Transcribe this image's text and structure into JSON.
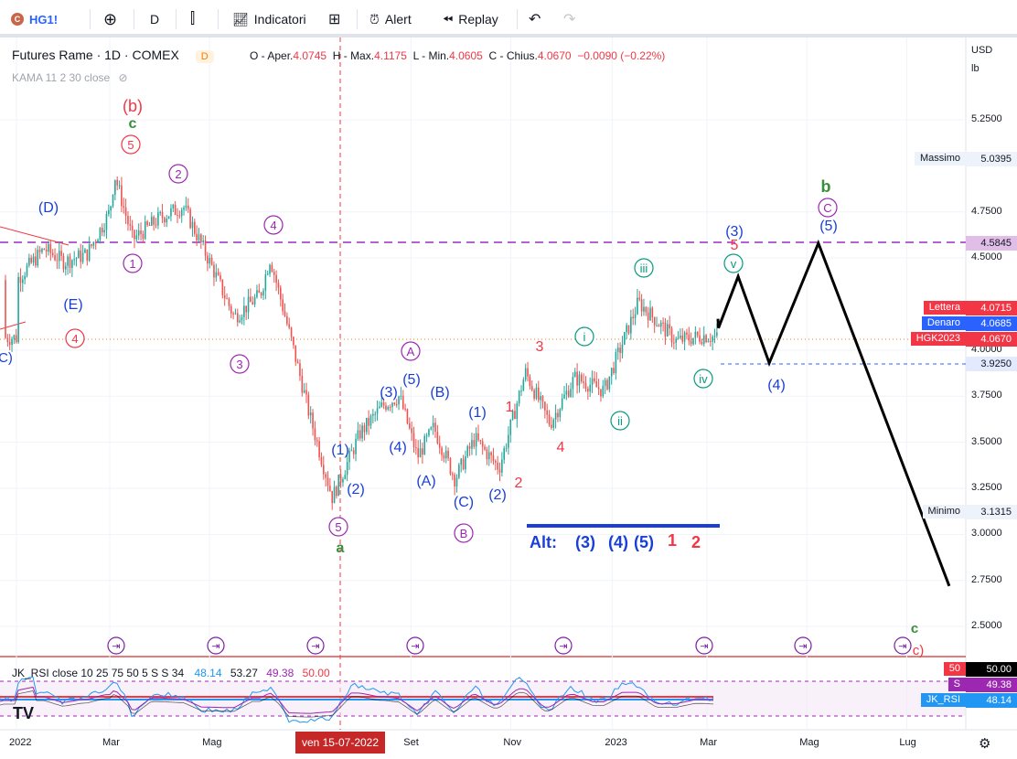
{
  "toolbar": {
    "symbol": "HG1!",
    "interval": "D",
    "indicators_label": "Indicatori",
    "alert_label": "Alert",
    "replay_label": "Replay"
  },
  "legend": {
    "title": "Futures Rame · 1D · COMEX",
    "badge": "D",
    "open_key": "O - Aper.",
    "open": "4.0745",
    "high_key": "H - Max.",
    "high": "4.1175",
    "low_key": "L - Min.",
    "low": "4.0605",
    "close_key": "C - Chius.",
    "close": "4.0670",
    "change": "−0.0090 (−0.22%)",
    "kama": "KAMA 11 2 30 close"
  },
  "rsi_legend": {
    "name": "JK_RSI close 10 25 75 50 5 S S 34",
    "v1": "48.14",
    "v2": "53.27",
    "v3": "49.38",
    "v4": "50.00"
  },
  "axis": {
    "currency": "USD",
    "unit": "lb",
    "y_ticks": [
      "5.2500",
      "4.7500",
      "4.5000",
      "4.0000",
      "3.7500",
      "3.5000",
      "3.2500",
      "3.0000",
      "2.7500",
      "2.5000"
    ],
    "x_ticks": [
      "2022",
      "Mar",
      "Mag",
      "Set",
      "Nov",
      "2023",
      "Mar",
      "Mag",
      "Lug"
    ],
    "crosshair_date": "ven 15-07-2022"
  },
  "price_labels": {
    "massimo_name": "Massimo",
    "massimo": "5.0395",
    "level_4585": "4.5845",
    "lettera_name": "Lettera",
    "lettera": "4.0715",
    "denaro_name": "Denaro",
    "denaro": "4.0685",
    "hgk_name": "HGK2023",
    "hgk": "4.0670",
    "level_3925": "3.9250",
    "minimo_name": "Minimo",
    "minimo": "3.1315",
    "rsi_50": "50.00",
    "rsi_s_name": "S",
    "rsi_s": "49.38",
    "rsi_name": "JK_RSI",
    "rsi": "48.14"
  },
  "wave_labels": {
    "b_red": "(b)",
    "c_green_top": "c",
    "five_top": "5",
    "two_top": "2",
    "four_top": "4",
    "D": "(D)",
    "E": "(E)",
    "one_left": "1",
    "four_left": "4",
    "c_partial": "C)",
    "three_left": "3",
    "five_low": "5",
    "a_green": "a",
    "p1": "(1)",
    "p2": "(2)",
    "p3": "(3)",
    "p4": "(4)",
    "p5": "(5)",
    "A_circ": "A",
    "Ap": "(A)",
    "Bp": "(B)",
    "Cp": "(C)",
    "B_circ": "B",
    "p1b": "(1)",
    "p2b": "(2)",
    "red1": "1",
    "red2": "2",
    "red3": "3",
    "red4": "4",
    "i": "i",
    "ii": "ii",
    "iii": "iii",
    "iv": "iv",
    "v": "v",
    "p3_proj": "(3)",
    "red5_proj": "5",
    "p4_proj": "(4)",
    "b_green": "b",
    "C_circ": "C",
    "p5_proj": "(5)",
    "c_green_bottom": "c",
    "c_red_bottom": "c)",
    "alt": "Alt:",
    "alt3": "(3)",
    "alt4": "(4)",
    "alt5": "(5)",
    "alt1": "1",
    "alt2": "2"
  },
  "colors": {
    "up": "#26a69a",
    "down": "#ef5350",
    "blue_wave": "#2962ff",
    "purple": "#9c27b0",
    "red_wave": "#f23645",
    "green_wave": "#388e3c",
    "teal_circle": "#089981",
    "dashed_purple": "#b45fd6"
  },
  "chart_data": {
    "type": "candlestick",
    "title": "Futures Rame · 1D · COMEX",
    "ylabel": "USD / lb",
    "ylim": [
      2.38,
      5.45
    ],
    "x_range": [
      "2022-01-01",
      "2023-08-01"
    ],
    "horizontal_levels": [
      4.5845,
      3.925
    ],
    "high": 5.0395,
    "low": 3.1315,
    "last": 4.067,
    "series_close": [
      [
        "2022-01-03",
        4.38
      ],
      [
        "2022-01-20",
        4.55
      ],
      [
        "2022-02-01",
        4.48
      ],
      [
        "2022-02-15",
        4.52
      ],
      [
        "2022-03-01",
        4.75
      ],
      [
        "2022-03-04",
        4.95
      ],
      [
        "2022-03-15",
        4.6
      ],
      [
        "2022-04-01",
        4.72
      ],
      [
        "2022-04-15",
        4.78
      ],
      [
        "2022-05-01",
        4.48
      ],
      [
        "2022-05-16",
        4.18
      ],
      [
        "2022-06-01",
        4.3
      ],
      [
        "2022-06-07",
        4.5
      ],
      [
        "2022-06-20",
        4.05
      ],
      [
        "2022-07-01",
        3.65
      ],
      [
        "2022-07-15",
        3.2
      ],
      [
        "2022-08-01",
        3.55
      ],
      [
        "2022-08-15",
        3.7
      ],
      [
        "2022-08-25",
        3.75
      ],
      [
        "2022-09-05",
        3.42
      ],
      [
        "2022-09-15",
        3.58
      ],
      [
        "2022-09-28",
        3.3
      ],
      [
        "2022-10-10",
        3.52
      ],
      [
        "2022-10-25",
        3.36
      ],
      [
        "2022-11-10",
        3.88
      ],
      [
        "2022-11-25",
        3.6
      ],
      [
        "2022-12-10",
        3.85
      ],
      [
        "2022-12-28",
        3.78
      ],
      [
        "2023-01-18",
        4.26
      ],
      [
        "2023-02-10",
        4.05
      ],
      [
        "2023-02-28",
        4.08
      ],
      [
        "2023-03-07",
        4.067
      ]
    ],
    "projection": [
      [
        "2023-03-08",
        4.12
      ],
      [
        "2023-03-20",
        4.4
      ],
      [
        "2023-04-08",
        3.93
      ],
      [
        "2023-05-08",
        4.58
      ],
      [
        "2023-07-27",
        2.72
      ]
    ],
    "rsi": {
      "name": "JK_RSI",
      "values": [
        48.14,
        53.27,
        49.38,
        50.0
      ]
    }
  }
}
